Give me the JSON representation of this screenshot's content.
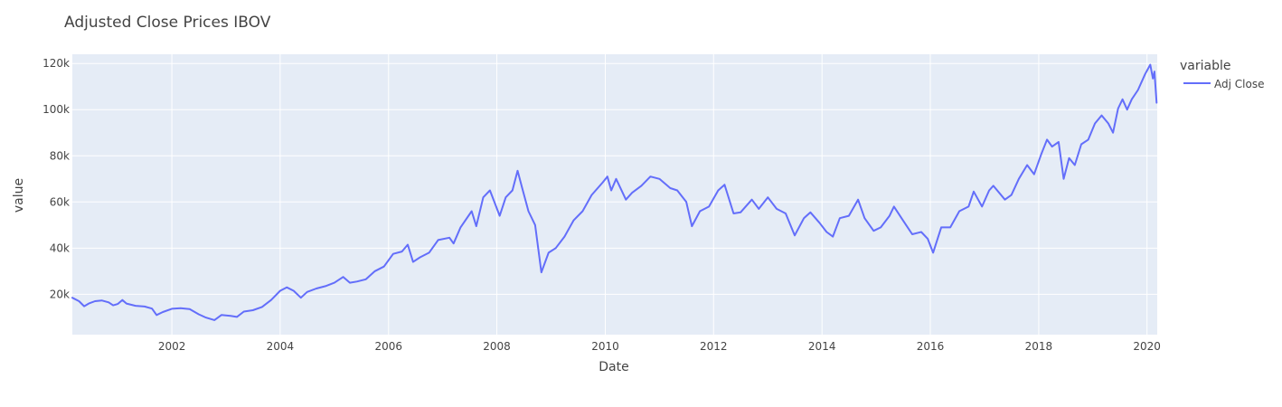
{
  "colors": {
    "plot_bg": "#E5ECF6",
    "grid": "#ffffff",
    "series": "#636EFA",
    "text": "#444444"
  },
  "chart_data": {
    "type": "line",
    "title": "Adjusted Close Prices IBOV",
    "xlabel": "Date",
    "ylabel": "value",
    "xlim": [
      "2000-03-01",
      "2020-03-10"
    ],
    "ylim": [
      2500,
      124000
    ],
    "x_ticks": [
      "2002",
      "2004",
      "2006",
      "2008",
      "2010",
      "2012",
      "2014",
      "2016",
      "2018",
      "2020"
    ],
    "y_ticks": [
      {
        "value": 20000,
        "label": "20k"
      },
      {
        "value": 40000,
        "label": "40k"
      },
      {
        "value": 60000,
        "label": "60k"
      },
      {
        "value": 80000,
        "label": "80k"
      },
      {
        "value": 100000,
        "label": "100k"
      },
      {
        "value": 120000,
        "label": "120k"
      }
    ],
    "grid": true,
    "legend": {
      "title": "variable",
      "position": "right"
    },
    "series": [
      {
        "name": "Adj Close",
        "points": [
          [
            "2000-03-01",
            18500
          ],
          [
            "2000-04-15",
            17000
          ],
          [
            "2000-05-20",
            14800
          ],
          [
            "2000-06-20",
            16000
          ],
          [
            "2000-08-01",
            17000
          ],
          [
            "2000-09-15",
            17300
          ],
          [
            "2000-11-01",
            16500
          ],
          [
            "2000-12-01",
            15200
          ],
          [
            "2001-01-01",
            15800
          ],
          [
            "2001-02-01",
            17500
          ],
          [
            "2001-03-01",
            16000
          ],
          [
            "2001-05-01",
            15000
          ],
          [
            "2001-07-01",
            14700
          ],
          [
            "2001-08-20",
            13800
          ],
          [
            "2001-09-20",
            11000
          ],
          [
            "2001-11-01",
            12300
          ],
          [
            "2002-01-01",
            13700
          ],
          [
            "2002-03-01",
            14000
          ],
          [
            "2002-05-01",
            13600
          ],
          [
            "2002-07-01",
            11300
          ],
          [
            "2002-08-15",
            10000
          ],
          [
            "2002-10-15",
            8800
          ],
          [
            "2002-12-01",
            11000
          ],
          [
            "2003-02-01",
            10600
          ],
          [
            "2003-03-15",
            10200
          ],
          [
            "2003-05-01",
            12500
          ],
          [
            "2003-07-01",
            13100
          ],
          [
            "2003-09-01",
            14500
          ],
          [
            "2003-11-01",
            17500
          ],
          [
            "2004-01-01",
            21500
          ],
          [
            "2004-02-15",
            23000
          ],
          [
            "2004-04-01",
            21500
          ],
          [
            "2004-05-20",
            18500
          ],
          [
            "2004-07-01",
            21000
          ],
          [
            "2004-09-01",
            22500
          ],
          [
            "2004-11-01",
            23500
          ],
          [
            "2005-01-01",
            25000
          ],
          [
            "2005-03-01",
            27500
          ],
          [
            "2005-04-15",
            25000
          ],
          [
            "2005-06-01",
            25500
          ],
          [
            "2005-08-01",
            26500
          ],
          [
            "2005-10-01",
            30000
          ],
          [
            "2005-12-01",
            32000
          ],
          [
            "2006-02-01",
            37500
          ],
          [
            "2006-04-01",
            38500
          ],
          [
            "2006-05-10",
            41500
          ],
          [
            "2006-06-15",
            34000
          ],
          [
            "2006-08-01",
            36000
          ],
          [
            "2006-10-01",
            38000
          ],
          [
            "2006-12-01",
            43500
          ],
          [
            "2007-02-15",
            44500
          ],
          [
            "2007-03-15",
            42000
          ],
          [
            "2007-05-01",
            49000
          ],
          [
            "2007-07-15",
            56000
          ],
          [
            "2007-08-15",
            49500
          ],
          [
            "2007-10-01",
            62000
          ],
          [
            "2007-11-15",
            65000
          ],
          [
            "2008-01-20",
            54000
          ],
          [
            "2008-03-01",
            62000
          ],
          [
            "2008-04-15",
            65000
          ],
          [
            "2008-05-20",
            73500
          ],
          [
            "2008-06-20",
            66000
          ],
          [
            "2008-08-01",
            56000
          ],
          [
            "2008-09-15",
            50000
          ],
          [
            "2008-10-27",
            29500
          ],
          [
            "2008-12-15",
            38000
          ],
          [
            "2009-02-01",
            40000
          ],
          [
            "2009-04-01",
            45000
          ],
          [
            "2009-06-01",
            52000
          ],
          [
            "2009-08-01",
            56000
          ],
          [
            "2009-10-01",
            63000
          ],
          [
            "2009-12-15",
            68500
          ],
          [
            "2010-01-15",
            71000
          ],
          [
            "2010-02-10",
            65000
          ],
          [
            "2010-03-15",
            70000
          ],
          [
            "2010-05-20",
            61000
          ],
          [
            "2010-07-01",
            64000
          ],
          [
            "2010-09-01",
            67000
          ],
          [
            "2010-11-01",
            71000
          ],
          [
            "2011-01-01",
            70000
          ],
          [
            "2011-03-15",
            66000
          ],
          [
            "2011-05-01",
            65000
          ],
          [
            "2011-07-01",
            60000
          ],
          [
            "2011-08-08",
            49500
          ],
          [
            "2011-10-01",
            56000
          ],
          [
            "2011-12-01",
            58000
          ],
          [
            "2012-02-01",
            65000
          ],
          [
            "2012-03-15",
            67500
          ],
          [
            "2012-05-15",
            55000
          ],
          [
            "2012-07-01",
            55500
          ],
          [
            "2012-09-15",
            61000
          ],
          [
            "2012-11-01",
            57000
          ],
          [
            "2013-01-01",
            62000
          ],
          [
            "2013-03-01",
            57000
          ],
          [
            "2013-05-01",
            55000
          ],
          [
            "2013-07-01",
            45500
          ],
          [
            "2013-09-01",
            53000
          ],
          [
            "2013-10-15",
            55500
          ],
          [
            "2013-12-15",
            51000
          ],
          [
            "2014-02-01",
            47000
          ],
          [
            "2014-03-15",
            45000
          ],
          [
            "2014-05-01",
            53000
          ],
          [
            "2014-07-01",
            54000
          ],
          [
            "2014-09-01",
            61000
          ],
          [
            "2014-10-15",
            53000
          ],
          [
            "2014-12-15",
            47500
          ],
          [
            "2015-02-01",
            49000
          ],
          [
            "2015-04-01",
            54000
          ],
          [
            "2015-05-01",
            58000
          ],
          [
            "2015-07-01",
            52000
          ],
          [
            "2015-09-01",
            46000
          ],
          [
            "2015-11-01",
            47000
          ],
          [
            "2015-12-15",
            44000
          ],
          [
            "2016-01-20",
            38000
          ],
          [
            "2016-03-15",
            49000
          ],
          [
            "2016-05-15",
            49000
          ],
          [
            "2016-07-15",
            56000
          ],
          [
            "2016-09-15",
            58000
          ],
          [
            "2016-10-20",
            64500
          ],
          [
            "2016-12-15",
            58000
          ],
          [
            "2017-02-01",
            65000
          ],
          [
            "2017-03-01",
            67000
          ],
          [
            "2017-05-18",
            61000
          ],
          [
            "2017-07-01",
            63000
          ],
          [
            "2017-08-20",
            70000
          ],
          [
            "2017-10-15",
            76000
          ],
          [
            "2017-12-01",
            72000
          ],
          [
            "2018-01-20",
            81000
          ],
          [
            "2018-02-26",
            87000
          ],
          [
            "2018-04-01",
            84000
          ],
          [
            "2018-05-15",
            86000
          ],
          [
            "2018-06-18",
            70000
          ],
          [
            "2018-07-25",
            79000
          ],
          [
            "2018-09-01",
            76000
          ],
          [
            "2018-10-15",
            85000
          ],
          [
            "2018-12-01",
            87000
          ],
          [
            "2019-01-15",
            94000
          ],
          [
            "2019-03-01",
            97500
          ],
          [
            "2019-04-15",
            94000
          ],
          [
            "2019-05-17",
            90000
          ],
          [
            "2019-06-20",
            100500
          ],
          [
            "2019-07-20",
            104500
          ],
          [
            "2019-08-20",
            100000
          ],
          [
            "2019-09-20",
            104500
          ],
          [
            "2019-11-01",
            108500
          ],
          [
            "2019-12-20",
            115500
          ],
          [
            "2020-01-23",
            119500
          ],
          [
            "2020-02-10",
            113500
          ],
          [
            "2020-02-20",
            116500
          ],
          [
            "2020-03-06",
            103000
          ]
        ]
      }
    ]
  }
}
